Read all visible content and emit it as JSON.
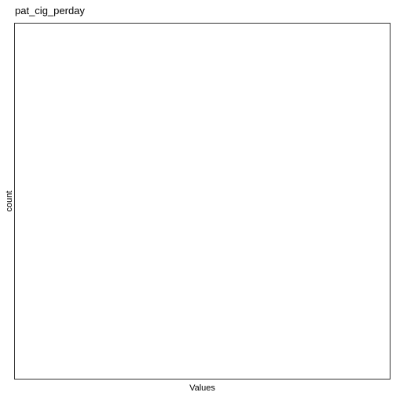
{
  "chart_data": {
    "type": "bar",
    "title": "pat_cig_perday",
    "xlabel": "Values",
    "ylabel": "count",
    "categories": [],
    "values": [],
    "grid": false,
    "legend": "none"
  },
  "colors": {
    "background": "#ffffff",
    "panel_border": "#333333",
    "text": "#000000"
  }
}
